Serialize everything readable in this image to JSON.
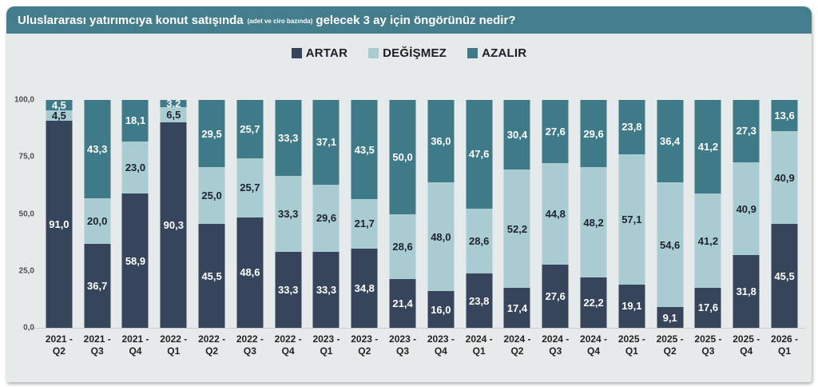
{
  "header": {
    "title_main": "Uluslararası yatırımcıya konut satışında",
    "title_small": "(adet ve ciro bazında)",
    "title_rest": "gelecek 3 ay için öngörünüz nedir?"
  },
  "colors": {
    "titlebar_bg": "#447d8b",
    "panel_bg": "#e7eaea",
    "artar": "#36455c",
    "degismez": "#a9ccd3",
    "azalir": "#3e7a88"
  },
  "chart_data": {
    "type": "bar",
    "stacked": true,
    "title": "Uluslararası yatırımcıya konut satışında (adet ve ciro bazında) gelecek 3 ay için öngörünüz nedir?",
    "legend_position": "top-center",
    "grid": false,
    "ylim": [
      0,
      100
    ],
    "yticks_top_to_bottom": [
      "100,0",
      "75,0",
      "50,0",
      "25,0",
      "0,0"
    ],
    "categories": [
      "2021 -\nQ2",
      "2021 -\nQ3",
      "2021 -\nQ4",
      "2022 -\nQ1",
      "2022 -\nQ2",
      "2022 -\nQ3",
      "2022 -\nQ4",
      "2023 -\nQ1",
      "2023 -\nQ2",
      "2023 -\nQ3",
      "2023 -\nQ4",
      "2024 -\nQ1",
      "2024 -\nQ2",
      "2024 -\nQ3",
      "2024 -\nQ4",
      "2025 -\nQ1",
      "2025 -\nQ2",
      "2025 -\nQ3",
      "2025 -\nQ4",
      "2026 -\nQ1"
    ],
    "series": [
      {
        "name": "ARTAR",
        "color": "#36455c",
        "label_color": "#ffffff",
        "values": [
          91.0,
          36.7,
          58.9,
          90.3,
          45.5,
          48.6,
          33.3,
          33.3,
          34.8,
          21.4,
          16.0,
          23.8,
          17.4,
          27.6,
          22.2,
          19.1,
          9.1,
          17.6,
          31.8,
          45.5
        ]
      },
      {
        "name": "DEĞİŞMEZ",
        "color": "#a9ccd3",
        "label_color": "#1c232c",
        "values": [
          4.5,
          20.0,
          23.0,
          6.5,
          25.0,
          25.7,
          33.3,
          29.6,
          21.7,
          28.6,
          48.0,
          28.6,
          52.2,
          44.8,
          48.2,
          57.1,
          54.6,
          41.2,
          40.9,
          40.9
        ]
      },
      {
        "name": "AZALIR",
        "color": "#3e7a88",
        "label_color": "#ffffff",
        "values": [
          4.5,
          43.3,
          18.1,
          3.2,
          29.5,
          25.7,
          33.3,
          37.1,
          43.5,
          50.0,
          36.0,
          47.6,
          30.4,
          27.6,
          29.6,
          23.8,
          36.4,
          41.2,
          27.3,
          13.6
        ]
      }
    ]
  }
}
